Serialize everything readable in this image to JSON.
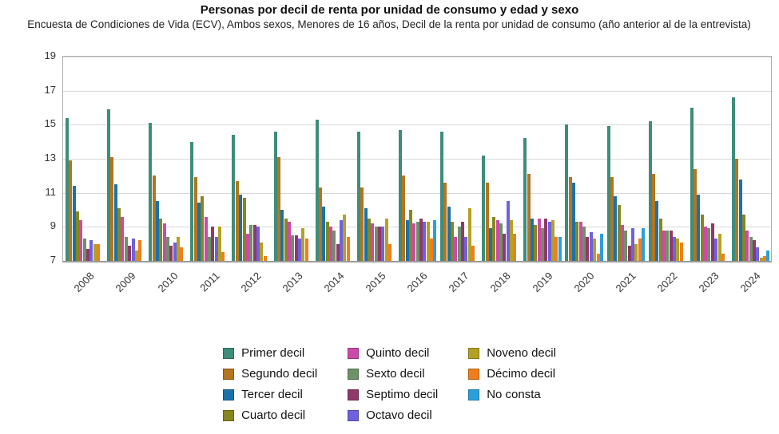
{
  "header": {
    "title": "Personas por decil de renta por unidad de consumo y edad y sexo",
    "subtitle": "Encuesta de Condiciones de Vida (ECV), Ambos sexos, Menores de 16 años, Decil de la renta por unidad de consumo (año anterior al de la entrevista)"
  },
  "chart_data": {
    "type": "bar",
    "title": "Personas por decil de renta por unidad de consumo y edad y sexo",
    "subtitle": "Encuesta de Condiciones de Vida (ECV), Ambos sexos, Menores de 16 años, Decil de la renta por unidad de consumo (año anterior al de la entrevista)",
    "xlabel": "",
    "ylabel": "",
    "ylim": [
      7,
      19
    ],
    "yticks": [
      7,
      9,
      11,
      13,
      15,
      17,
      19
    ],
    "grid": true,
    "legend_position": "bottom",
    "categories": [
      "2008",
      "2009",
      "2010",
      "2011",
      "2012",
      "2013",
      "2014",
      "2015",
      "2016",
      "2017",
      "2018",
      "2019",
      "2020",
      "2021",
      "2022",
      "2023",
      "2024"
    ],
    "series": [
      {
        "name": "Primer decil",
        "color": "#3e8c7a",
        "values": [
          15.4,
          15.9,
          15.1,
          14.0,
          14.4,
          14.6,
          15.3,
          14.6,
          14.7,
          14.6,
          13.2,
          14.2,
          15.0,
          14.9,
          15.2,
          16.0,
          16.6
        ]
      },
      {
        "name": "Segundo decil",
        "color": "#b5741f",
        "values": [
          12.9,
          13.1,
          12.0,
          11.9,
          11.7,
          13.1,
          11.3,
          11.3,
          12.0,
          11.6,
          11.6,
          12.1,
          11.9,
          11.9,
          12.1,
          12.4,
          13.0
        ]
      },
      {
        "name": "Tercer decil",
        "color": "#1c72a8",
        "values": [
          11.4,
          11.5,
          10.5,
          10.4,
          10.9,
          10.0,
          10.2,
          10.1,
          9.4,
          10.2,
          8.9,
          9.5,
          11.6,
          10.8,
          10.5,
          10.9,
          11.8
        ]
      },
      {
        "name": "Cuarto decil",
        "color": "#87861f",
        "values": [
          9.9,
          10.1,
          9.5,
          10.8,
          10.7,
          9.5,
          9.3,
          9.5,
          10.0,
          9.3,
          9.6,
          9.1,
          9.3,
          10.3,
          9.5,
          9.7,
          9.7
        ]
      },
      {
        "name": "Quinto decil",
        "color": "#cb4aa8",
        "values": [
          9.4,
          9.6,
          9.2,
          9.6,
          8.6,
          9.3,
          9.0,
          9.2,
          9.2,
          8.4,
          9.4,
          9.5,
          9.3,
          9.1,
          8.8,
          9.0,
          8.8
        ]
      },
      {
        "name": "Sexto decil",
        "color": "#6e9168",
        "values": [
          8.3,
          8.4,
          8.4,
          8.4,
          9.1,
          8.5,
          8.8,
          9.0,
          9.3,
          9.0,
          9.2,
          8.9,
          9.0,
          8.8,
          8.8,
          8.9,
          8.4
        ]
      },
      {
        "name": "Septimo decil",
        "color": "#8e3a68",
        "values": [
          7.7,
          7.9,
          7.9,
          9.0,
          9.1,
          8.5,
          8.0,
          9.0,
          9.5,
          9.3,
          8.6,
          9.5,
          8.4,
          7.9,
          8.8,
          9.2,
          8.2
        ]
      },
      {
        "name": "Octavo decil",
        "color": "#6e62dd",
        "values": [
          8.2,
          8.3,
          8.1,
          8.4,
          9.0,
          8.3,
          9.4,
          9.0,
          9.3,
          8.4,
          10.5,
          9.3,
          8.7,
          8.9,
          8.4,
          8.3,
          7.8
        ]
      },
      {
        "name": "Noveno decil",
        "color": "#b3a125",
        "values": [
          8.0,
          7.6,
          8.4,
          9.0,
          8.1,
          8.9,
          9.7,
          9.5,
          9.3,
          10.1,
          9.4,
          9.4,
          8.3,
          8.0,
          8.3,
          8.6,
          7.2
        ]
      },
      {
        "name": "Décimo decil",
        "color": "#f07e1e",
        "values": [
          8.0,
          8.2,
          7.8,
          7.5,
          7.3,
          8.3,
          8.4,
          8.0,
          8.3,
          7.9,
          8.6,
          8.4,
          7.4,
          8.3,
          8.1,
          7.4,
          7.3
        ]
      },
      {
        "name": "No consta",
        "color": "#2b9fdc",
        "values": [
          null,
          null,
          null,
          null,
          null,
          null,
          null,
          null,
          9.4,
          null,
          null,
          8.4,
          8.6,
          8.9,
          null,
          null,
          7.6
        ]
      }
    ]
  }
}
